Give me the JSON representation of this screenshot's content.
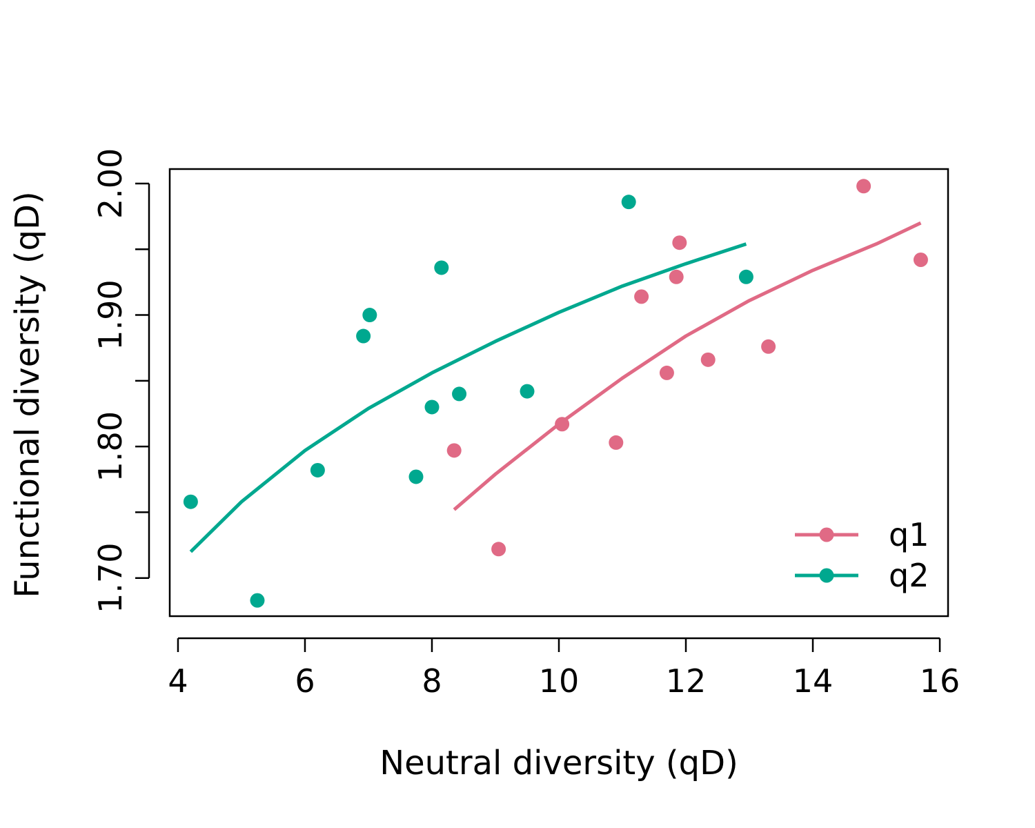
{
  "chart_data": {
    "type": "scatter",
    "title": "",
    "xlabel": "Neutral diversity (qD)",
    "ylabel": "Functional diversity (qD)",
    "xlim": [
      3.87,
      16.13
    ],
    "ylim": [
      1.671,
      2.011
    ],
    "x_ticks": [
      4,
      6,
      8,
      10,
      12,
      14,
      16
    ],
    "x_tick_labels": [
      "4",
      "6",
      "8",
      "10",
      "12",
      "14",
      "16"
    ],
    "y_ticks": [
      1.7,
      1.75,
      1.8,
      1.85,
      1.9,
      1.95,
      2.0
    ],
    "y_tick_labels": [
      "1.70",
      "",
      "1.80",
      "",
      "1.90",
      "",
      "2.00"
    ],
    "grid": false,
    "legend_position": "bottom-right",
    "series": [
      {
        "name": "q1",
        "color": "#E06A85",
        "points": [
          {
            "x": 8.35,
            "y": 1.797
          },
          {
            "x": 9.05,
            "y": 1.722
          },
          {
            "x": 10.05,
            "y": 1.817
          },
          {
            "x": 10.9,
            "y": 1.803
          },
          {
            "x": 11.3,
            "y": 1.914
          },
          {
            "x": 11.7,
            "y": 1.856
          },
          {
            "x": 11.85,
            "y": 1.929
          },
          {
            "x": 11.9,
            "y": 1.955
          },
          {
            "x": 12.35,
            "y": 1.866
          },
          {
            "x": 13.3,
            "y": 1.876
          },
          {
            "x": 14.8,
            "y": 1.998
          },
          {
            "x": 15.7,
            "y": 1.942
          }
        ],
        "fit": [
          {
            "x": 8.35,
            "y": 1.752
          },
          {
            "x": 9.0,
            "y": 1.779
          },
          {
            "x": 10.0,
            "y": 1.817
          },
          {
            "x": 11.0,
            "y": 1.852
          },
          {
            "x": 12.0,
            "y": 1.884
          },
          {
            "x": 13.0,
            "y": 1.911
          },
          {
            "x": 14.0,
            "y": 1.934
          },
          {
            "x": 15.0,
            "y": 1.954
          },
          {
            "x": 15.7,
            "y": 1.97
          }
        ]
      },
      {
        "name": "q2",
        "color": "#00A88F",
        "points": [
          {
            "x": 4.2,
            "y": 1.758
          },
          {
            "x": 5.25,
            "y": 1.683
          },
          {
            "x": 6.2,
            "y": 1.782
          },
          {
            "x": 6.92,
            "y": 1.884
          },
          {
            "x": 7.02,
            "y": 1.9
          },
          {
            "x": 7.75,
            "y": 1.777
          },
          {
            "x": 8.0,
            "y": 1.83
          },
          {
            "x": 8.15,
            "y": 1.936
          },
          {
            "x": 8.43,
            "y": 1.84
          },
          {
            "x": 9.5,
            "y": 1.842
          },
          {
            "x": 11.1,
            "y": 1.986
          },
          {
            "x": 12.95,
            "y": 1.929
          }
        ],
        "fit": [
          {
            "x": 4.2,
            "y": 1.72
          },
          {
            "x": 5.0,
            "y": 1.758
          },
          {
            "x": 6.0,
            "y": 1.797
          },
          {
            "x": 7.0,
            "y": 1.829
          },
          {
            "x": 8.0,
            "y": 1.856
          },
          {
            "x": 9.0,
            "y": 1.88
          },
          {
            "x": 10.0,
            "y": 1.902
          },
          {
            "x": 11.0,
            "y": 1.922
          },
          {
            "x": 12.0,
            "y": 1.939
          },
          {
            "x": 12.95,
            "y": 1.954
          }
        ]
      }
    ]
  }
}
